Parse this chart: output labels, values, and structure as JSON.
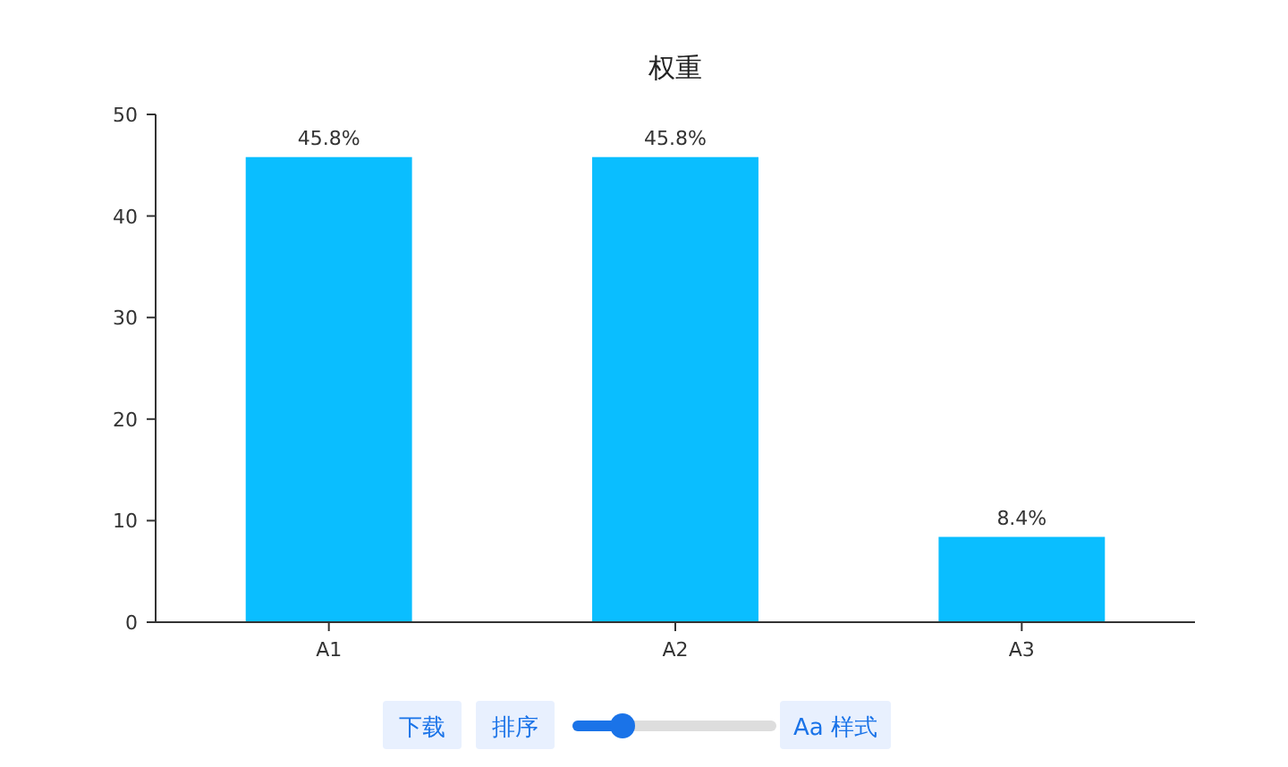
{
  "chart_data": {
    "type": "bar",
    "title": "权重",
    "categories": [
      "A1",
      "A2",
      "A3"
    ],
    "values": [
      45.8,
      45.8,
      8.4
    ],
    "value_labels": [
      "45.8%",
      "45.8%",
      "8.4%"
    ],
    "color": "#0abeff",
    "ylim": [
      0,
      50
    ],
    "yticks": [
      0,
      10,
      20,
      30,
      40,
      50
    ],
    "grid": false,
    "annotations": [
      "下载",
      "排序",
      "Aa 样式"
    ]
  }
}
